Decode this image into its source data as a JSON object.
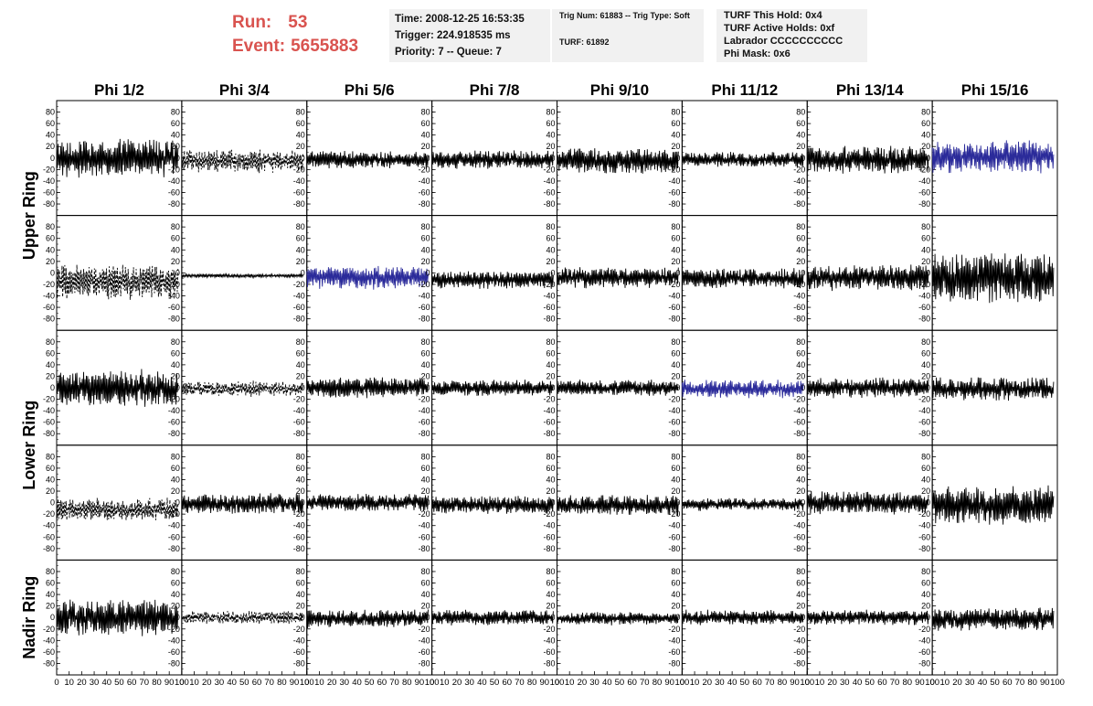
{
  "header": {
    "run_label": "Run:",
    "run_value": "53",
    "event_label": "Event:",
    "event_value": "5655883",
    "colors": {
      "run_event": "#d9534f",
      "box_bg": "#f1f1f1"
    }
  },
  "info_box_1": {
    "time": "Time: 2008-12-25 16:53:35",
    "trigger": "Trigger: 224.918535 ms",
    "priority": "Priority: 7 -- Queue: 7"
  },
  "info_box_2": {
    "trig": "Trig Num: 61883 -- Trig Type: Soft",
    "turf": "TURF: 61892"
  },
  "info_box_3": {
    "this_hold": "TURF This Hold: 0x4",
    "active_holds": "TURF Active Holds: 0xf",
    "labrador": "Labrador CCCCCCCCCC",
    "phi_mask": "Phi Mask: 0x6"
  },
  "chart_data": {
    "type": "line",
    "description_grid": "5 rows x 8 columns of waveform panels",
    "columns": [
      "Phi 1/2",
      "Phi 3/4",
      "Phi 5/6",
      "Phi 7/8",
      "Phi 9/10",
      "Phi 11/12",
      "Phi 13/14",
      "Phi 15/16"
    ],
    "ring_labels": [
      {
        "label": "Upper Ring",
        "rows": [
          0,
          1
        ]
      },
      {
        "label": "Lower Ring",
        "rows": [
          2,
          3
        ]
      },
      {
        "label": "Nadir Ring",
        "rows": [
          4,
          4
        ]
      }
    ],
    "ylim": [
      -100,
      100
    ],
    "yticks": [
      "80",
      "60",
      "40",
      "20",
      "0",
      "-20",
      "-40",
      "-60",
      "-80"
    ],
    "xlim": [
      0,
      100
    ],
    "xticks": [
      "0",
      "10",
      "20",
      "30",
      "40",
      "50",
      "60",
      "70",
      "80",
      "90",
      "100"
    ],
    "grid": false,
    "colors": {
      "normal": "#000000",
      "triggered": "#2b2b9a"
    },
    "panels": [
      {
        "row": 0,
        "col": 0,
        "style": "solid",
        "color": "normal",
        "amplitude": 30,
        "offset": 0
      },
      {
        "row": 0,
        "col": 1,
        "style": "dashed",
        "color": "normal",
        "amplitude": 18,
        "offset": -5
      },
      {
        "row": 0,
        "col": 2,
        "style": "solid",
        "color": "normal",
        "amplitude": 14,
        "offset": -3
      },
      {
        "row": 0,
        "col": 3,
        "style": "solid",
        "color": "normal",
        "amplitude": 14,
        "offset": -3
      },
      {
        "row": 0,
        "col": 4,
        "style": "solid",
        "color": "normal",
        "amplitude": 20,
        "offset": -5
      },
      {
        "row": 0,
        "col": 5,
        "style": "solid",
        "color": "normal",
        "amplitude": 12,
        "offset": -3
      },
      {
        "row": 0,
        "col": 6,
        "style": "solid",
        "color": "normal",
        "amplitude": 22,
        "offset": -3
      },
      {
        "row": 0,
        "col": 7,
        "style": "solid",
        "color": "triggered",
        "amplitude": 26,
        "offset": 2
      },
      {
        "row": 1,
        "col": 0,
        "style": "dashed",
        "color": "normal",
        "amplitude": 28,
        "offset": -15
      },
      {
        "row": 1,
        "col": 1,
        "style": "solid",
        "color": "normal",
        "amplitude": 3,
        "offset": -5
      },
      {
        "row": 1,
        "col": 2,
        "style": "solid",
        "color": "triggered",
        "amplitude": 18,
        "offset": -8
      },
      {
        "row": 1,
        "col": 3,
        "style": "solid",
        "color": "normal",
        "amplitude": 14,
        "offset": -12
      },
      {
        "row": 1,
        "col": 4,
        "style": "solid",
        "color": "normal",
        "amplitude": 16,
        "offset": -8
      },
      {
        "row": 1,
        "col": 5,
        "style": "solid",
        "color": "normal",
        "amplitude": 16,
        "offset": -10
      },
      {
        "row": 1,
        "col": 6,
        "style": "solid",
        "color": "normal",
        "amplitude": 20,
        "offset": -8
      },
      {
        "row": 1,
        "col": 7,
        "style": "solid",
        "color": "normal",
        "amplitude": 40,
        "offset": -8
      },
      {
        "row": 2,
        "col": 0,
        "style": "solid",
        "color": "normal",
        "amplitude": 28,
        "offset": 0
      },
      {
        "row": 2,
        "col": 1,
        "style": "dashed",
        "color": "normal",
        "amplitude": 12,
        "offset": -2
      },
      {
        "row": 2,
        "col": 2,
        "style": "solid",
        "color": "normal",
        "amplitude": 16,
        "offset": 0
      },
      {
        "row": 2,
        "col": 3,
        "style": "solid",
        "color": "normal",
        "amplitude": 12,
        "offset": 0
      },
      {
        "row": 2,
        "col": 4,
        "style": "solid",
        "color": "normal",
        "amplitude": 12,
        "offset": 0
      },
      {
        "row": 2,
        "col": 5,
        "style": "solid",
        "color": "triggered",
        "amplitude": 14,
        "offset": -2
      },
      {
        "row": 2,
        "col": 6,
        "style": "solid",
        "color": "normal",
        "amplitude": 16,
        "offset": 0
      },
      {
        "row": 2,
        "col": 7,
        "style": "solid",
        "color": "normal",
        "amplitude": 18,
        "offset": -2
      },
      {
        "row": 3,
        "col": 0,
        "style": "dashed",
        "color": "normal",
        "amplitude": 18,
        "offset": -12
      },
      {
        "row": 3,
        "col": 1,
        "style": "solid",
        "color": "normal",
        "amplitude": 16,
        "offset": -2
      },
      {
        "row": 3,
        "col": 2,
        "style": "solid",
        "color": "normal",
        "amplitude": 14,
        "offset": 0
      },
      {
        "row": 3,
        "col": 3,
        "style": "solid",
        "color": "normal",
        "amplitude": 14,
        "offset": -4
      },
      {
        "row": 3,
        "col": 4,
        "style": "solid",
        "color": "normal",
        "amplitude": 16,
        "offset": -5
      },
      {
        "row": 3,
        "col": 5,
        "style": "solid",
        "color": "normal",
        "amplitude": 10,
        "offset": -3
      },
      {
        "row": 3,
        "col": 6,
        "style": "solid",
        "color": "normal",
        "amplitude": 18,
        "offset": 0
      },
      {
        "row": 3,
        "col": 7,
        "style": "solid",
        "color": "normal",
        "amplitude": 30,
        "offset": -5
      },
      {
        "row": 4,
        "col": 0,
        "style": "solid",
        "color": "normal",
        "amplitude": 28,
        "offset": 0
      },
      {
        "row": 4,
        "col": 1,
        "style": "dashed",
        "color": "normal",
        "amplitude": 10,
        "offset": 0
      },
      {
        "row": 4,
        "col": 2,
        "style": "solid",
        "color": "normal",
        "amplitude": 14,
        "offset": -2
      },
      {
        "row": 4,
        "col": 3,
        "style": "solid",
        "color": "normal",
        "amplitude": 12,
        "offset": 0
      },
      {
        "row": 4,
        "col": 4,
        "style": "solid",
        "color": "normal",
        "amplitude": 10,
        "offset": -2
      },
      {
        "row": 4,
        "col": 5,
        "style": "solid",
        "color": "normal",
        "amplitude": 12,
        "offset": 0
      },
      {
        "row": 4,
        "col": 6,
        "style": "solid",
        "color": "normal",
        "amplitude": 12,
        "offset": 0
      },
      {
        "row": 4,
        "col": 7,
        "style": "solid",
        "color": "normal",
        "amplitude": 18,
        "offset": -3
      }
    ]
  }
}
